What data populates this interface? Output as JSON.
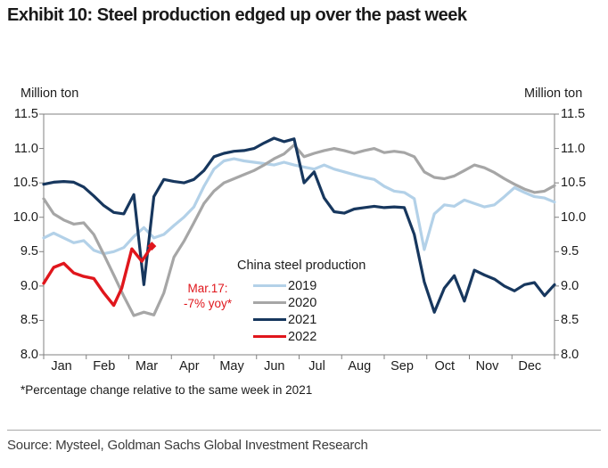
{
  "title": "Exhibit 10: Steel production edged up over the past week",
  "axes": {
    "left_unit": "Million ton",
    "right_unit": "Million ton",
    "y_tick_labels": [
      "11.5",
      "11.0",
      "10.5",
      "10.0",
      "9.5",
      "9.0",
      "8.5",
      "8.0"
    ],
    "months": [
      "Jan",
      "Feb",
      "Mar",
      "Apr",
      "May",
      "Jun",
      "Jul",
      "Aug",
      "Sep",
      "Oct",
      "Nov",
      "Dec"
    ],
    "axis_color": "#808080"
  },
  "legend": {
    "title": "China steel production",
    "items": [
      {
        "label": "2019",
        "color": "#b3d1e8"
      },
      {
        "label": "2020",
        "color": "#a6a6a6"
      },
      {
        "label": "2021",
        "color": "#17375e"
      },
      {
        "label": "2022",
        "color": "#e0161c"
      }
    ]
  },
  "annotation": {
    "line1": "Mar.17:",
    "line2": "-7% yoy*",
    "color": "#e0161c"
  },
  "footnote": "*Percentage change relative to the same week in 2021",
  "source": "Source: Mysteel, Goldman Sachs Global Investment Research",
  "chart_data": {
    "type": "line",
    "title": "China steel production",
    "ylabel": "Million ton",
    "ylim": [
      8.0,
      11.5
    ],
    "x_unit": "week of year",
    "weeks_per_year": 52,
    "x_tick_labels": [
      "Jan",
      "Feb",
      "Mar",
      "Apr",
      "May",
      "Jun",
      "Jul",
      "Aug",
      "Sep",
      "Oct",
      "Nov",
      "Dec"
    ],
    "grid": false,
    "legend_position": "inside center-left",
    "series": [
      {
        "name": "2019",
        "color": "#b3d1e8",
        "values": [
          9.7,
          9.77,
          9.7,
          9.63,
          9.66,
          9.52,
          9.47,
          9.5,
          9.56,
          9.72,
          9.85,
          9.7,
          9.75,
          9.88,
          10.0,
          10.15,
          10.45,
          10.7,
          10.82,
          10.85,
          10.82,
          10.8,
          10.78,
          10.76,
          10.8,
          10.76,
          10.73,
          10.7,
          10.76,
          10.7,
          10.66,
          10.62,
          10.58,
          10.55,
          10.45,
          10.38,
          10.36,
          10.27,
          9.53,
          10.05,
          10.18,
          10.16,
          10.25,
          10.2,
          10.15,
          10.18,
          10.3,
          10.43,
          10.36,
          10.3,
          10.28,
          10.22
        ]
      },
      {
        "name": "2020",
        "color": "#a6a6a6",
        "values": [
          10.27,
          10.05,
          9.96,
          9.9,
          9.92,
          9.75,
          9.46,
          9.16,
          8.85,
          8.57,
          8.62,
          8.58,
          8.9,
          9.42,
          9.65,
          9.92,
          10.2,
          10.38,
          10.5,
          10.56,
          10.62,
          10.68,
          10.76,
          10.85,
          10.92,
          11.05,
          10.88,
          10.93,
          10.97,
          11.0,
          10.97,
          10.93,
          10.97,
          11.0,
          10.94,
          10.96,
          10.94,
          10.88,
          10.66,
          10.58,
          10.56,
          10.6,
          10.68,
          10.76,
          10.72,
          10.65,
          10.56,
          10.48,
          10.41,
          10.36,
          10.38,
          10.46
        ]
      },
      {
        "name": "2021",
        "color": "#17375e",
        "values": [
          10.48,
          10.51,
          10.52,
          10.51,
          10.44,
          10.31,
          10.17,
          10.07,
          10.05,
          10.33,
          9.02,
          10.3,
          10.55,
          10.52,
          10.5,
          10.55,
          10.68,
          10.88,
          10.93,
          10.96,
          10.97,
          11.0,
          11.08,
          11.15,
          11.1,
          11.14,
          10.5,
          10.66,
          10.28,
          10.08,
          10.06,
          10.12,
          10.14,
          10.16,
          10.14,
          10.15,
          10.14,
          9.75,
          9.06,
          8.62,
          8.97,
          9.15,
          8.78,
          9.23,
          9.16,
          9.1,
          9.0,
          8.93,
          9.02,
          9.05,
          8.86,
          9.02
        ]
      },
      {
        "name": "2022",
        "color": "#e0161c",
        "x": [
          1,
          2,
          3,
          4,
          5,
          6,
          7,
          8,
          8.8,
          9.8,
          10.8,
          11.8
        ],
        "values": [
          9.04,
          9.27,
          9.33,
          9.19,
          9.14,
          9.11,
          8.9,
          8.72,
          8.97,
          9.54,
          9.36,
          9.58
        ],
        "end_marker": "diamond"
      }
    ]
  }
}
